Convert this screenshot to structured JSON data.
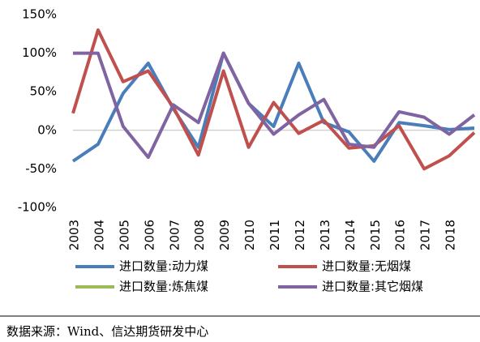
{
  "chart_data": {
    "type": "line",
    "categories": [
      "2003",
      "2004",
      "2005",
      "2006",
      "2007",
      "2008",
      "2009",
      "2010",
      "2011",
      "2012",
      "2013",
      "2014",
      "2015",
      "2016",
      "2017",
      "2018",
      null
    ],
    "series": [
      {
        "name": "进口数量:动力煤",
        "color": "#4a7ebb",
        "values": [
          -40,
          -18,
          48,
          87,
          28,
          -22,
          100,
          35,
          5,
          87,
          10,
          -2,
          -40,
          10,
          6,
          1,
          3
        ]
      },
      {
        "name": "进口数量:无烟煤",
        "color": "#c0504d",
        "values": [
          22,
          130,
          63,
          77,
          30,
          -32,
          77,
          -22,
          36,
          -4,
          13,
          -23,
          -20,
          6,
          -50,
          -33,
          -3
        ]
      },
      {
        "name": "进口数量:炼焦煤",
        "color": "#9bbb59",
        "values": [
          null,
          null,
          null,
          null,
          null,
          null,
          null,
          null,
          null,
          null,
          null,
          null,
          null,
          null,
          null,
          null,
          null
        ]
      },
      {
        "name": "进口数量:其它烟煤",
        "color": "#8064a2",
        "values": [
          100,
          100,
          5,
          -35,
          33,
          10,
          100,
          35,
          -5,
          20,
          40,
          -18,
          -22,
          24,
          17,
          -5,
          20
        ]
      }
    ],
    "ylim": [
      -100,
      150
    ],
    "yticks": [
      {
        "value": -100,
        "label": "-100%"
      },
      {
        "value": -50,
        "label": "-50%"
      },
      {
        "value": 0,
        "label": "0%"
      },
      {
        "value": 50,
        "label": "50%"
      },
      {
        "value": 100,
        "label": "100%"
      },
      {
        "value": 150,
        "label": "150%"
      }
    ],
    "source": "数据来源：Wind、信达期货研发中心"
  }
}
